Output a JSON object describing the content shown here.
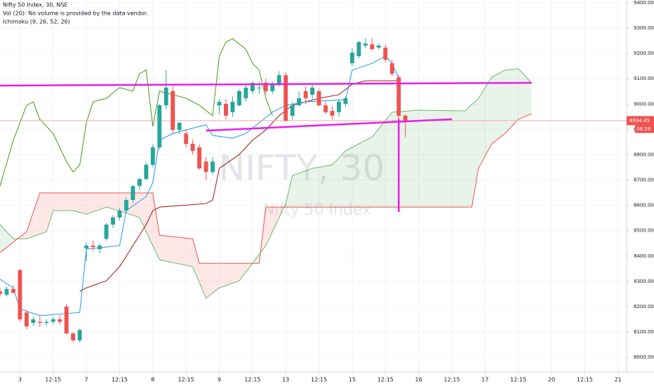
{
  "chart_data": {
    "type": "candlestick",
    "title": "Nifty 50 Index, 30, NSE",
    "legend": [
      "Vol (20): No volume is provided by the data vendor.",
      "Ichimoku (9, 26, 52, 26)"
    ],
    "watermark": "NIFTY, 30",
    "watermark_subtitle": "Nifty 50 Index",
    "up_color": "#26a69a",
    "down_color": "#ef5350",
    "x": [
      -3,
      -2,
      -1,
      0,
      1,
      2,
      3,
      4,
      5,
      6,
      7,
      8,
      9,
      10,
      11,
      12,
      13,
      14,
      15,
      16,
      17,
      18,
      19,
      20,
      21,
      22,
      23,
      24,
      25,
      26,
      27,
      28,
      29,
      30,
      31,
      32,
      33,
      34,
      35,
      36,
      37,
      38,
      39,
      40,
      41,
      42,
      43,
      44,
      45,
      46,
      47,
      48,
      49,
      50,
      51,
      52,
      53,
      54,
      55,
      56,
      57,
      58
    ],
    "open": [
      8261,
      8247,
      8270,
      8344,
      8177,
      8136,
      8140,
      8136,
      8140,
      8150,
      8200,
      8094,
      8067,
      8430,
      8441,
      8427,
      8468,
      8524,
      8552,
      8579,
      8621,
      8676,
      8704,
      8760,
      8829,
      8995,
      9051,
      8898,
      8884,
      8843,
      8829,
      8773,
      8732,
      8995,
      9001,
      8968,
      8995,
      9023,
      9051,
      9065,
      9084,
      9051,
      9078,
      9114,
      8954,
      8995,
      9051,
      9037,
      9051,
      8995,
      8973,
      8968,
      9001,
      9161,
      9189,
      9231,
      9236,
      9223,
      9223,
      9161,
      9106,
      8954
    ],
    "high": [
      8275,
      8280,
      8285,
      8350,
      8185,
      8160,
      8160,
      8150,
      8160,
      8165,
      8210,
      8100,
      8112,
      8455,
      8460,
      8450,
      8530,
      8560,
      8590,
      8630,
      8680,
      8710,
      8770,
      8840,
      9000,
      9134,
      9070,
      8930,
      8900,
      8860,
      8840,
      8790,
      8790,
      9020,
      9020,
      9030,
      9060,
      9080,
      9090,
      9090,
      9100,
      9090,
      9130,
      9125,
      9010,
      9050,
      9070,
      9080,
      9060,
      9010,
      8990,
      9020,
      9030,
      9220,
      9250,
      9260,
      9260,
      9240,
      9235,
      9175,
      9115,
      8960
    ],
    "low": [
      8240,
      8240,
      8250,
      8140,
      8110,
      8125,
      8120,
      8125,
      8130,
      8130,
      8090,
      8060,
      8060,
      8380,
      8420,
      8410,
      8460,
      8510,
      8540,
      8570,
      8610,
      8660,
      8700,
      8750,
      8820,
      8980,
      8880,
      8880,
      8830,
      8800,
      8740,
      8700,
      8720,
      8960,
      8940,
      8950,
      8990,
      9010,
      9040,
      9040,
      9040,
      9040,
      9070,
      8930,
      8940,
      8990,
      9000,
      9020,
      8990,
      8960,
      8940,
      8950,
      8990,
      9150,
      9180,
      9220,
      9210,
      9215,
      9165,
      9110,
      8940,
      8870
    ],
    "close": [
      8250,
      8270,
      8255,
      8150,
      8122,
      8150,
      8136,
      8140,
      8150,
      8140,
      8094,
      8067,
      8108,
      8441,
      8435,
      8441,
      8524,
      8552,
      8579,
      8621,
      8676,
      8704,
      8760,
      8829,
      8995,
      9065,
      8898,
      8926,
      8843,
      8815,
      8746,
      8732,
      8773,
      9009,
      8954,
      9009,
      9051,
      9065,
      9084,
      9065,
      9051,
      9078,
      9114,
      8934,
      8995,
      9023,
      9023,
      9065,
      8995,
      8968,
      8954,
      9009,
      9023,
      9203,
      9245,
      9239,
      9217,
      9231,
      9175,
      9120,
      8954,
      8934.45
    ],
    "ichimoku": {
      "tenkan": {
        "color": "#2196f3",
        "x": [
          -3,
          -1,
          0,
          3,
          9,
          10,
          15,
          16,
          19,
          20,
          21,
          23,
          25,
          28,
          29,
          32,
          34,
          36,
          38,
          40,
          43,
          49,
          50,
          53,
          55,
          56,
          57
        ],
        "values": [
          8308,
          8274,
          8191,
          8164,
          8177,
          8427,
          8441,
          8579,
          8635,
          8690,
          8857,
          8884,
          8898,
          8918,
          8876,
          8865,
          8884,
          8926,
          8968,
          8995,
          9009,
          9017,
          9134,
          9161,
          9189,
          9161,
          9101
        ]
      },
      "kijun": {
        "color": "#991515",
        "x": [
          9,
          10,
          13,
          15,
          17,
          19,
          20,
          21,
          28,
          29,
          30,
          33,
          35,
          37,
          39,
          41,
          45,
          48,
          50,
          52,
          57
        ],
        "values": [
          8261,
          8274,
          8302,
          8358,
          8441,
          8524,
          8579,
          8593,
          8607,
          8621,
          8746,
          8801,
          8857,
          8898,
          8954,
          8995,
          9023,
          9037,
          9078,
          9092,
          9092
        ]
      },
      "chikou": {
        "color": "#459915",
        "x": [
          -3,
          -1,
          1,
          2,
          3,
          5,
          7,
          8,
          9,
          10,
          11,
          13,
          15,
          17,
          18,
          19,
          20,
          21,
          23,
          25,
          27,
          29,
          30,
          31,
          32,
          34,
          35,
          36,
          37,
          38
        ],
        "values": [
          8676,
          8857,
          8995,
          9009,
          8940,
          8884,
          8773,
          8732,
          8760,
          8926,
          9009,
          9023,
          9065,
          9051,
          9120,
          9134,
          8912,
          9051,
          9037,
          9023,
          8995,
          8954,
          9189,
          9245,
          9258,
          9217,
          9161,
          9134,
          9023,
          8954
        ]
      },
      "senkou_a": {
        "color": "#66bb6a",
        "x": [
          -3,
          -1,
          1,
          4,
          5,
          8,
          10,
          13,
          15,
          18,
          19,
          21,
          26,
          28,
          30,
          33,
          35,
          37,
          40,
          41,
          44,
          47,
          49,
          51,
          53,
          56,
          60,
          67,
          69,
          71,
          73,
          75,
          77
        ],
        "values": [
          8524,
          8468,
          8468,
          8496,
          8579,
          8579,
          8565,
          8593,
          8579,
          8552,
          8496,
          8385,
          8358,
          8233,
          8274,
          8302,
          8371,
          8441,
          8607,
          8718,
          8746,
          8760,
          8815,
          8843,
          8870,
          8968,
          8976,
          8973,
          9023,
          9106,
          9134,
          9140,
          9084
        ]
      },
      "senkou_b": {
        "color": "#ef5350",
        "x": [
          -3,
          1,
          3,
          13,
          20,
          21,
          26,
          27,
          34,
          36,
          37,
          68,
          69,
          71,
          73,
          75,
          77
        ],
        "values": [
          8413,
          8496,
          8649,
          8649,
          8649,
          8482,
          8468,
          8371,
          8371,
          8371,
          8593,
          8593,
          8746,
          8843,
          8884,
          8940,
          8962
        ]
      },
      "cloud_up_color": "rgba(67,160,71,0.12)",
      "cloud_down_color": "rgba(244,67,54,0.12)"
    },
    "drawings": [
      {
        "color": "#e91ee9",
        "x": [
          -3,
          77
        ],
        "values": [
          9073,
          9084
        ]
      },
      {
        "color": "#e91ee9",
        "x": [
          28,
          65
        ],
        "values": [
          8895,
          8940
        ]
      },
      {
        "color": "#e91ee9",
        "x": [
          57,
          57
        ],
        "values": [
          8940,
          8574
        ]
      }
    ],
    "last_price": 8934.45,
    "countdown": "08:28",
    "ylim": [
      7942,
      9411
    ],
    "yticks": [
      {
        "value": 8000,
        "label": "8000.00"
      },
      {
        "value": 8100,
        "label": "8100.00"
      },
      {
        "value": 8200,
        "label": "8200.00"
      },
      {
        "value": 8300,
        "label": "8300.00"
      },
      {
        "value": 8400,
        "label": "8400.00"
      },
      {
        "value": 8500,
        "label": "8500.00"
      },
      {
        "value": 8600,
        "label": "8600.00"
      },
      {
        "value": 8700,
        "label": "8700.00"
      },
      {
        "value": 8800,
        "label": "8800.00"
      },
      {
        "value": 8900,
        "label": "8900.00"
      },
      {
        "value": 9000,
        "label": "9000.00"
      },
      {
        "value": 9100,
        "label": "9100.00"
      },
      {
        "value": 9200,
        "label": "9200.00"
      },
      {
        "value": 9300,
        "label": "9300.00"
      },
      {
        "value": 9400,
        "label": "9400.00"
      }
    ],
    "xlim": [
      -3,
      91.3
    ],
    "xticks": [
      {
        "value": 0,
        "label": "3"
      },
      {
        "value": 5,
        "label": "12:15"
      },
      {
        "value": 10,
        "label": "7"
      },
      {
        "value": 15,
        "label": "12:15"
      },
      {
        "value": 20,
        "label": "8"
      },
      {
        "value": 25,
        "label": "12:15"
      },
      {
        "value": 30,
        "label": "9"
      },
      {
        "value": 35,
        "label": "12:15"
      },
      {
        "value": 40,
        "label": "13"
      },
      {
        "value": 45,
        "label": "12:15"
      },
      {
        "value": 50,
        "label": "15"
      },
      {
        "value": 55,
        "label": "12:15"
      },
      {
        "value": 60,
        "label": "16"
      },
      {
        "value": 65,
        "label": "12:15"
      },
      {
        "value": 70,
        "label": "17"
      },
      {
        "value": 75,
        "label": "12:15"
      },
      {
        "value": 80,
        "label": "20"
      },
      {
        "value": 85,
        "label": "12:15"
      },
      {
        "value": 90,
        "label": "21"
      }
    ],
    "grid": true
  }
}
